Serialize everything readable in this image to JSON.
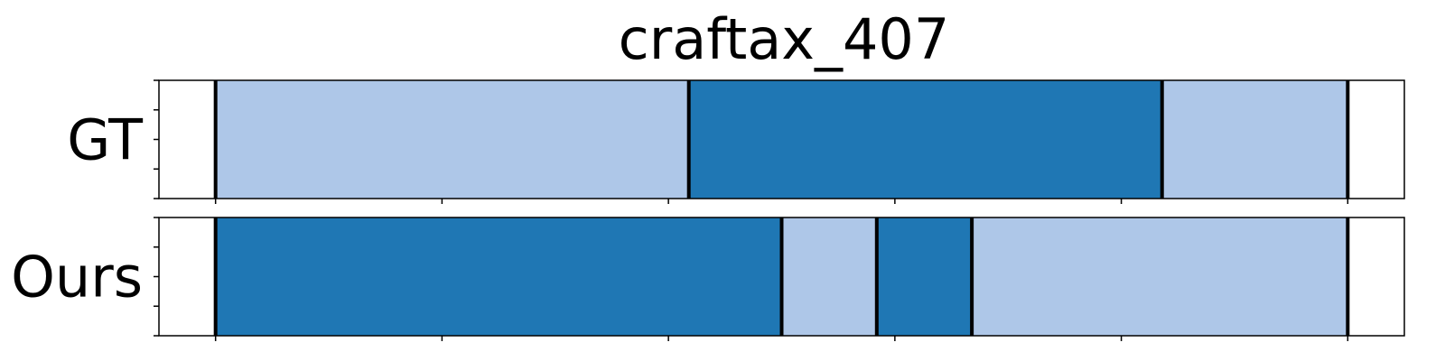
{
  "chart_data": {
    "type": "segmentation-timeline",
    "title": "craftax_407",
    "xlim": [
      0,
      550
    ],
    "colors": {
      "light": "#aec7e8",
      "dark": "#1f77b4",
      "boundary": "#000000"
    },
    "rows": [
      {
        "label": "GT",
        "segments": [
          {
            "start": 25,
            "end": 234,
            "class": "light"
          },
          {
            "start": 234,
            "end": 443,
            "class": "dark"
          },
          {
            "start": 443,
            "end": 525,
            "class": "light"
          }
        ],
        "boundaries": [
          25,
          234,
          443,
          525
        ]
      },
      {
        "label": "Ours",
        "segments": [
          {
            "start": 25,
            "end": 275,
            "class": "dark"
          },
          {
            "start": 275,
            "end": 317,
            "class": "light"
          },
          {
            "start": 317,
            "end": 359,
            "class": "dark"
          },
          {
            "start": 359,
            "end": 525,
            "class": "light"
          }
        ],
        "boundaries": [
          25,
          275,
          317,
          359,
          525
        ]
      }
    ],
    "x_ticks": [
      25,
      125,
      225,
      325,
      425,
      525
    ],
    "y_ticks_per_row": 5
  }
}
